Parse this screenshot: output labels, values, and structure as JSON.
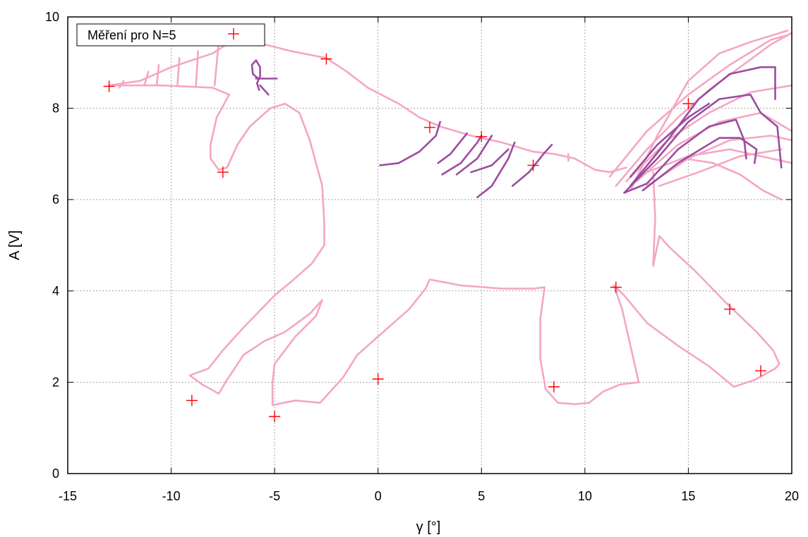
{
  "chart_data": {
    "type": "scatter",
    "title": "",
    "xlabel": "γ [°]",
    "ylabel": "A [V]",
    "xlim": [
      -15,
      20
    ],
    "ylim": [
      0,
      10
    ],
    "xticks": [
      -15,
      -10,
      -5,
      0,
      5,
      10,
      15,
      20
    ],
    "yticks": [
      0,
      2,
      4,
      6,
      8,
      10
    ],
    "grid": true,
    "legend": "top-left",
    "series": [
      {
        "name": "Měření pro N=5",
        "color": "#ff0000",
        "marker": "cross",
        "x": [
          -13,
          -7,
          -2.5,
          -7.5,
          -9,
          -5,
          0,
          2.5,
          5,
          7.5,
          8.5,
          11.5,
          15,
          17,
          18.5
        ],
        "y": [
          8.48,
          9.62,
          9.08,
          6.6,
          1.6,
          1.25,
          2.07,
          7.58,
          7.38,
          6.75,
          1.9,
          4.08,
          8.1,
          3.6,
          2.25
        ]
      }
    ],
    "doodles": [
      {
        "color": "#f4a6c4",
        "paths": [
          [
            [
              -13,
              8.5
            ],
            [
              -11.5,
              8.6
            ],
            [
              -10,
              8.9
            ],
            [
              -8,
              9.2
            ],
            [
              -6.8,
              9.55
            ],
            [
              -6.2,
              9.62
            ],
            [
              -5.5,
              9.4
            ],
            [
              -4.2,
              9.25
            ],
            [
              -2.5,
              9.1
            ],
            [
              -1.5,
              8.8
            ],
            [
              -0.5,
              8.45
            ],
            [
              1,
              8.1
            ],
            [
              2,
              7.8
            ],
            [
              3,
              7.6
            ],
            [
              4.5,
              7.4
            ],
            [
              6,
              7.25
            ],
            [
              7.5,
              7.05
            ],
            [
              8.5,
              7
            ],
            [
              9.5,
              6.9
            ],
            [
              10.5,
              6.65
            ],
            [
              11.2,
              6.6
            ],
            [
              12,
              6.7
            ]
          ],
          [
            [
              -13,
              8.5
            ],
            [
              -10.5,
              8.5
            ],
            [
              -8,
              8.45
            ],
            [
              -7.2,
              8.3
            ]
          ],
          [
            [
              -7.2,
              8.3
            ],
            [
              -7.8,
              7.8
            ],
            [
              -8.1,
              7.2
            ],
            [
              -8.1,
              6.9
            ],
            [
              -7.7,
              6.65
            ],
            [
              -7.3,
              6.7
            ],
            [
              -6.8,
              7.2
            ],
            [
              -6.2,
              7.6
            ],
            [
              -5.2,
              8
            ],
            [
              -4.5,
              8.1
            ],
            [
              -3.8,
              7.9
            ],
            [
              -3.3,
              7.3
            ],
            [
              -3,
              6.8
            ],
            [
              -2.7,
              6.3
            ],
            [
              -2.6,
              5.5
            ],
            [
              -2.6,
              5
            ],
            [
              -3.2,
              4.6
            ],
            [
              -4.2,
              4.2
            ],
            [
              -5,
              3.9
            ],
            [
              -6.5,
              3.2
            ],
            [
              -7.5,
              2.7
            ],
            [
              -8.2,
              2.3
            ],
            [
              -9.1,
              2.15
            ],
            [
              -8.5,
              1.95
            ],
            [
              -7.7,
              1.75
            ],
            [
              -7.3,
              2.05
            ],
            [
              -6.5,
              2.6
            ],
            [
              -5.5,
              2.9
            ],
            [
              -4.5,
              3.1
            ],
            [
              -3.3,
              3.5
            ],
            [
              -2.7,
              3.8
            ],
            [
              -3,
              3.45
            ],
            [
              -4,
              3
            ],
            [
              -5,
              2.4
            ],
            [
              -5.1,
              2
            ],
            [
              -5.1,
              1.5
            ],
            [
              -4,
              1.6
            ],
            [
              -2.8,
              1.55
            ],
            [
              -2.3,
              1.8
            ],
            [
              -1.7,
              2.1
            ],
            [
              -1,
              2.6
            ],
            [
              0,
              3
            ],
            [
              1.5,
              3.6
            ],
            [
              2.3,
              4.05
            ],
            [
              2.5,
              4.25
            ],
            [
              4,
              4.12
            ],
            [
              6,
              4.05
            ],
            [
              7.5,
              4.05
            ],
            [
              8.05,
              4.08
            ],
            [
              7.85,
              3.4
            ],
            [
              7.85,
              2.5
            ],
            [
              8.1,
              1.85
            ],
            [
              8.7,
              1.55
            ],
            [
              9.5,
              1.52
            ],
            [
              10.2,
              1.55
            ],
            [
              10.9,
              1.8
            ],
            [
              11.7,
              1.95
            ],
            [
              12.6,
              2
            ],
            [
              12.3,
              2.6
            ],
            [
              11.8,
              3.6
            ],
            [
              11.4,
              4.12
            ],
            [
              11.9,
              3.9
            ],
            [
              13,
              3.3
            ],
            [
              14.5,
              2.8
            ],
            [
              16,
              2.35
            ],
            [
              17.2,
              1.9
            ],
            [
              18.2,
              2.05
            ],
            [
              19.2,
              2.3
            ],
            [
              19.4,
              2.4
            ],
            [
              19.1,
              2.7
            ],
            [
              18.3,
              3.1
            ],
            [
              16.8,
              3.75
            ],
            [
              15.3,
              4.45
            ],
            [
              14.1,
              4.95
            ],
            [
              13.6,
              5.2
            ],
            [
              13.3,
              4.55
            ],
            [
              13.4,
              5.6
            ],
            [
              13.3,
              6.6
            ]
          ],
          [
            [
              9.2,
              7
            ],
            [
              9.2,
              6.85
            ]
          ],
          [
            [
              -12.5,
              8.45
            ],
            [
              -12.3,
              8.6
            ]
          ],
          [
            [
              -11.3,
              8.5
            ],
            [
              -11.1,
              8.8
            ]
          ],
          [
            [
              -10.7,
              8.5
            ],
            [
              -10.6,
              8.95
            ]
          ],
          [
            [
              -9.7,
              8.5
            ],
            [
              -9.6,
              9.1
            ]
          ],
          [
            [
              -8.8,
              8.5
            ],
            [
              -8.7,
              9.25
            ]
          ],
          [
            [
              -7.9,
              8.5
            ],
            [
              -7.7,
              9.45
            ]
          ],
          [
            [
              11.5,
              6.3
            ],
            [
              13,
              7.1
            ],
            [
              14.5,
              7.8
            ],
            [
              16,
              8.4
            ],
            [
              17.5,
              8.9
            ],
            [
              19,
              9.4
            ],
            [
              20,
              9.65
            ]
          ],
          [
            [
              11.2,
              6.5
            ],
            [
              13,
              7.5
            ],
            [
              15,
              8.3
            ],
            [
              17,
              8.95
            ],
            [
              19,
              9.5
            ],
            [
              19.8,
              9.6
            ]
          ],
          [
            [
              12,
              6.4
            ],
            [
              14,
              7.3
            ],
            [
              16,
              7.9
            ],
            [
              18,
              8.35
            ],
            [
              20,
              8.5
            ]
          ],
          [
            [
              12.5,
              6.4
            ],
            [
              14.5,
              7.2
            ],
            [
              16.5,
              7.7
            ],
            [
              18.5,
              7.9
            ],
            [
              20,
              7.5
            ]
          ],
          [
            [
              13,
              6.3
            ],
            [
              15,
              6.9
            ],
            [
              17,
              7.3
            ],
            [
              19,
              7.4
            ],
            [
              20,
              7.3
            ]
          ],
          [
            [
              13.6,
              6.3
            ],
            [
              15.5,
              6.6
            ],
            [
              17.5,
              6.95
            ],
            [
              19.5,
              7.1
            ]
          ],
          [
            [
              13,
              6.6
            ],
            [
              15,
              6.95
            ],
            [
              17,
              7.1
            ],
            [
              19,
              6.9
            ],
            [
              20,
              6.8
            ]
          ],
          [
            [
              14.8,
              6.9
            ],
            [
              16.2,
              6.8
            ],
            [
              17.5,
              6.55
            ],
            [
              18.6,
              6.2
            ],
            [
              19.5,
              6
            ]
          ],
          [
            [
              12.2,
              6.2
            ],
            [
              13.5,
              7.4
            ],
            [
              15,
              8.6
            ],
            [
              16.5,
              9.2
            ],
            [
              18,
              9.45
            ],
            [
              19.8,
              9.7
            ]
          ]
        ]
      },
      {
        "color": "#9b4d9e",
        "paths": [
          [
            [
              -5.9,
              8.65
            ],
            [
              -4.9,
              8.65
            ]
          ],
          [
            [
              -5.8,
              8.65
            ],
            [
              -6.05,
              8.75
            ],
            [
              -6.1,
              8.95
            ],
            [
              -5.9,
              9.05
            ],
            [
              -5.7,
              8.9
            ],
            [
              -5.7,
              8.7
            ],
            [
              -5.85,
              8.55
            ],
            [
              -5.75,
              8.4
            ]
          ],
          [
            [
              -5.7,
              8.5
            ],
            [
              -5.3,
              8.3
            ]
          ],
          [
            [
              0.1,
              6.75
            ],
            [
              1,
              6.8
            ],
            [
              2,
              7.05
            ],
            [
              2.8,
              7.4
            ],
            [
              3,
              7.7
            ]
          ],
          [
            [
              2.9,
              6.8
            ],
            [
              3.5,
              7
            ],
            [
              4.3,
              7.45
            ]
          ],
          [
            [
              3.1,
              6.55
            ],
            [
              4,
              6.8
            ],
            [
              4.8,
              7.25
            ],
            [
              5,
              7.4
            ]
          ],
          [
            [
              3.8,
              6.55
            ],
            [
              4.8,
              6.9
            ],
            [
              5.5,
              7.4
            ]
          ],
          [
            [
              4.8,
              6.05
            ],
            [
              5.5,
              6.3
            ],
            [
              6.3,
              6.9
            ],
            [
              6.6,
              7.25
            ]
          ],
          [
            [
              4.5,
              6.6
            ],
            [
              5.5,
              6.75
            ],
            [
              6.3,
              7.1
            ]
          ],
          [
            [
              6.5,
              6.3
            ],
            [
              7.3,
              6.6
            ],
            [
              8,
              7
            ],
            [
              8.4,
              7.2
            ]
          ],
          [
            [
              11.9,
              6.15
            ],
            [
              13,
              6.35
            ],
            [
              14.5,
              7.1
            ],
            [
              16,
              7.6
            ],
            [
              17.3,
              7.75
            ],
            [
              17.7,
              7.3
            ],
            [
              17.8,
              6.9
            ]
          ],
          [
            [
              11.9,
              6.15
            ],
            [
              13.5,
              6.9
            ],
            [
              15,
              7.7
            ],
            [
              16.5,
              8.2
            ],
            [
              18,
              8.3
            ],
            [
              18.5,
              7.9
            ],
            [
              19.3,
              7.6
            ],
            [
              19.5,
              6.7
            ]
          ],
          [
            [
              12.2,
              6.3
            ],
            [
              14,
              7.3
            ],
            [
              15.5,
              8.2
            ],
            [
              17,
              8.75
            ],
            [
              18.5,
              8.9
            ],
            [
              19.2,
              8.9
            ],
            [
              19.2,
              8.2
            ]
          ],
          [
            [
              12.8,
              6.2
            ],
            [
              14.5,
              6.8
            ],
            [
              16.5,
              7.35
            ],
            [
              17.5,
              7.35
            ],
            [
              18.3,
              7.1
            ],
            [
              18.2,
              6.8
            ]
          ],
          [
            [
              12.2,
              6.5
            ],
            [
              13.5,
              7.2
            ],
            [
              15,
              7.8
            ],
            [
              16,
              8.1
            ]
          ]
        ]
      }
    ]
  }
}
